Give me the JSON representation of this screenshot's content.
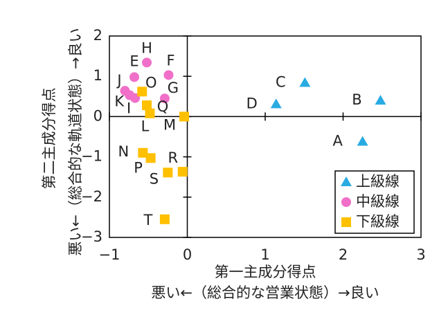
{
  "chart_data": {
    "type": "scatter",
    "xlabel": [
      "第一主成分得点",
      "悪い←（総合的な営業状態）→良い"
    ],
    "ylabel": [
      "第二主成分得点",
      "悪い←（総合的な軌道状態）→良い"
    ],
    "xlim": [
      -1,
      3
    ],
    "xticks": [
      {
        "value": -1,
        "label": "−1"
      },
      0,
      1,
      2,
      3
    ],
    "ylim": [
      -3,
      2
    ],
    "yticks": [
      {
        "value": -3,
        "label": "−3"
      },
      {
        "value": -2,
        "label": "−2"
      },
      {
        "value": -1,
        "label": "−1"
      },
      0,
      1,
      2
    ],
    "legend": "lower right",
    "series": [
      {
        "name": "上級線",
        "color": "#29abe2",
        "marker": "triangle",
        "labels": [
          "A",
          "B",
          "C",
          "D"
        ],
        "x": [
          2.25,
          2.48,
          1.51,
          1.14
        ],
        "y": [
          -0.62,
          0.4,
          0.84,
          0.31
        ]
      },
      {
        "name": "中級線",
        "color": "#f06fc8",
        "marker": "circle",
        "labels": [
          "H",
          "F",
          "E",
          "J",
          "K",
          "I",
          "G"
        ],
        "x": [
          -0.52,
          -0.24,
          -0.68,
          -0.8,
          -0.74,
          -0.67,
          -0.29
        ],
        "y": [
          1.34,
          1.03,
          0.98,
          0.64,
          0.53,
          0.46,
          0.45
        ]
      },
      {
        "name": "下級線",
        "color": "#ffc000",
        "marker": "square",
        "labels": [
          "O",
          "Q",
          "L",
          "M",
          "N",
          "P",
          "R",
          "S",
          "T"
        ],
        "x": [
          -0.58,
          -0.52,
          -0.48,
          -0.04,
          -0.57,
          -0.47,
          -0.06,
          -0.25,
          -0.29
        ],
        "y": [
          0.62,
          0.28,
          0.08,
          0.0,
          -0.9,
          -1.03,
          -1.37,
          -1.39,
          -2.55
        ]
      }
    ]
  }
}
